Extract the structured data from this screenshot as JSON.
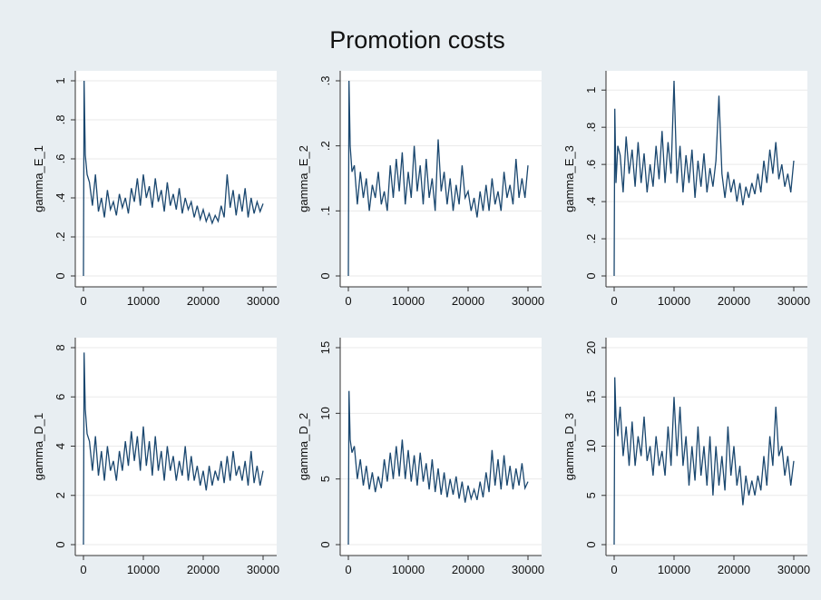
{
  "title": "Promotion costs",
  "chart_data": [
    {
      "type": "line",
      "y_label": "gamma_E_1",
      "xlim": [
        0,
        30000
      ],
      "xticks": [
        0,
        10000,
        20000,
        30000
      ],
      "ylim": [
        0,
        1
      ],
      "yticks": [
        0,
        {
          "value": 0.2,
          "label": ".2"
        },
        {
          "value": 0.4,
          "label": ".4"
        },
        {
          "value": 0.6,
          "label": ".6"
        },
        {
          "value": 0.8,
          "label": ".8"
        },
        1
      ],
      "grid": true,
      "x": [
        0,
        100,
        300,
        600,
        1000,
        1500,
        2000,
        2500,
        3000,
        3500,
        4000,
        4500,
        5000,
        5500,
        6000,
        6500,
        7000,
        7500,
        8000,
        8500,
        9000,
        9500,
        10000,
        10500,
        11000,
        11500,
        12000,
        12500,
        13000,
        13500,
        14000,
        14500,
        15000,
        15500,
        16000,
        16500,
        17000,
        17500,
        18000,
        18500,
        19000,
        19500,
        20000,
        20500,
        21000,
        21500,
        22000,
        22500,
        23000,
        23500,
        24000,
        24500,
        25000,
        25500,
        26000,
        26500,
        27000,
        27500,
        28000,
        28500,
        29000,
        29500,
        30000
      ],
      "series": [
        {
          "color": "#1a476f",
          "values": [
            0,
            1.0,
            0.62,
            0.52,
            0.48,
            0.36,
            0.52,
            0.33,
            0.4,
            0.3,
            0.44,
            0.34,
            0.38,
            0.31,
            0.42,
            0.35,
            0.4,
            0.32,
            0.45,
            0.38,
            0.5,
            0.36,
            0.52,
            0.4,
            0.46,
            0.35,
            0.5,
            0.38,
            0.44,
            0.33,
            0.48,
            0.36,
            0.42,
            0.34,
            0.45,
            0.32,
            0.4,
            0.34,
            0.38,
            0.3,
            0.36,
            0.29,
            0.34,
            0.28,
            0.32,
            0.27,
            0.31,
            0.28,
            0.36,
            0.3,
            0.52,
            0.35,
            0.44,
            0.31,
            0.42,
            0.33,
            0.45,
            0.3,
            0.4,
            0.32,
            0.38,
            0.33,
            0.37
          ]
        }
      ]
    },
    {
      "type": "line",
      "y_label": "gamma_E_2",
      "xlim": [
        0,
        30000
      ],
      "xticks": [
        0,
        10000,
        20000,
        30000
      ],
      "ylim": [
        0,
        0.3
      ],
      "yticks": [
        0,
        {
          "value": 0.1,
          "label": ".1"
        },
        {
          "value": 0.2,
          "label": ".2"
        },
        {
          "value": 0.3,
          "label": ".3"
        }
      ],
      "grid": true,
      "x": [
        0,
        100,
        300,
        600,
        1000,
        1500,
        2000,
        2500,
        3000,
        3500,
        4000,
        4500,
        5000,
        5500,
        6000,
        6500,
        7000,
        7500,
        8000,
        8500,
        9000,
        9500,
        10000,
        10500,
        11000,
        11500,
        12000,
        12500,
        13000,
        13500,
        14000,
        14500,
        15000,
        15500,
        16000,
        16500,
        17000,
        17500,
        18000,
        18500,
        19000,
        19500,
        20000,
        20500,
        21000,
        21500,
        22000,
        22500,
        23000,
        23500,
        24000,
        24500,
        25000,
        25500,
        26000,
        26500,
        27000,
        27500,
        28000,
        28500,
        29000,
        29500,
        30000
      ],
      "series": [
        {
          "color": "#1a476f",
          "values": [
            0,
            0.3,
            0.2,
            0.16,
            0.17,
            0.11,
            0.16,
            0.12,
            0.15,
            0.1,
            0.14,
            0.12,
            0.16,
            0.11,
            0.13,
            0.1,
            0.17,
            0.12,
            0.18,
            0.13,
            0.19,
            0.11,
            0.16,
            0.12,
            0.2,
            0.13,
            0.17,
            0.11,
            0.18,
            0.12,
            0.15,
            0.1,
            0.21,
            0.13,
            0.16,
            0.11,
            0.15,
            0.1,
            0.14,
            0.11,
            0.17,
            0.12,
            0.13,
            0.1,
            0.12,
            0.09,
            0.13,
            0.1,
            0.14,
            0.1,
            0.15,
            0.11,
            0.13,
            0.1,
            0.16,
            0.12,
            0.14,
            0.11,
            0.18,
            0.12,
            0.15,
            0.12,
            0.17
          ]
        }
      ]
    },
    {
      "type": "line",
      "y_label": "gamma_E_3",
      "xlim": [
        0,
        30000
      ],
      "xticks": [
        0,
        10000,
        20000,
        30000
      ],
      "ylim": [
        0,
        1.05
      ],
      "yticks": [
        0,
        {
          "value": 0.2,
          "label": ".2"
        },
        {
          "value": 0.4,
          "label": ".4"
        },
        {
          "value": 0.6,
          "label": ".6"
        },
        {
          "value": 0.8,
          "label": ".8"
        },
        1
      ],
      "grid": true,
      "x": [
        0,
        100,
        300,
        600,
        1000,
        1500,
        2000,
        2500,
        3000,
        3500,
        4000,
        4500,
        5000,
        5500,
        6000,
        6500,
        7000,
        7500,
        8000,
        8500,
        9000,
        9500,
        10000,
        10500,
        11000,
        11500,
        12000,
        12500,
        13000,
        13500,
        14000,
        14500,
        15000,
        15500,
        16000,
        16500,
        17000,
        17500,
        18000,
        18500,
        19000,
        19500,
        20000,
        20500,
        21000,
        21500,
        22000,
        22500,
        23000,
        23500,
        24000,
        24500,
        25000,
        25500,
        26000,
        26500,
        27000,
        27500,
        28000,
        28500,
        29000,
        29500,
        30000
      ],
      "series": [
        {
          "color": "#1a476f",
          "values": [
            0,
            0.9,
            0.5,
            0.7,
            0.65,
            0.45,
            0.75,
            0.55,
            0.68,
            0.48,
            0.72,
            0.5,
            0.66,
            0.45,
            0.6,
            0.48,
            0.7,
            0.52,
            0.78,
            0.5,
            0.72,
            0.55,
            1.05,
            0.5,
            0.7,
            0.45,
            0.65,
            0.5,
            0.68,
            0.42,
            0.62,
            0.48,
            0.66,
            0.45,
            0.58,
            0.48,
            0.62,
            0.97,
            0.55,
            0.42,
            0.56,
            0.45,
            0.52,
            0.4,
            0.5,
            0.38,
            0.48,
            0.42,
            0.5,
            0.44,
            0.55,
            0.45,
            0.62,
            0.5,
            0.68,
            0.55,
            0.72,
            0.52,
            0.6,
            0.48,
            0.55,
            0.45,
            0.62
          ]
        }
      ]
    },
    {
      "type": "line",
      "y_label": "gamma_D_1",
      "xlim": [
        0,
        30000
      ],
      "xticks": [
        0,
        10000,
        20000,
        30000
      ],
      "ylim": [
        0,
        8
      ],
      "yticks": [
        0,
        2,
        4,
        6,
        8
      ],
      "grid": true,
      "x": [
        0,
        100,
        300,
        600,
        1000,
        1500,
        2000,
        2500,
        3000,
        3500,
        4000,
        4500,
        5000,
        5500,
        6000,
        6500,
        7000,
        7500,
        8000,
        8500,
        9000,
        9500,
        10000,
        10500,
        11000,
        11500,
        12000,
        12500,
        13000,
        13500,
        14000,
        14500,
        15000,
        15500,
        16000,
        16500,
        17000,
        17500,
        18000,
        18500,
        19000,
        19500,
        20000,
        20500,
        21000,
        21500,
        22000,
        22500,
        23000,
        23500,
        24000,
        24500,
        25000,
        25500,
        26000,
        26500,
        27000,
        27500,
        28000,
        28500,
        29000,
        29500,
        30000
      ],
      "series": [
        {
          "color": "#1a476f",
          "values": [
            0,
            7.8,
            5.5,
            4.5,
            4.2,
            3.0,
            4.4,
            2.8,
            3.8,
            2.6,
            4.0,
            3.0,
            3.4,
            2.6,
            3.8,
            3.0,
            4.2,
            3.2,
            4.6,
            3.4,
            4.4,
            3.0,
            4.8,
            3.2,
            4.2,
            2.8,
            4.4,
            3.0,
            3.8,
            2.6,
            4.0,
            3.0,
            3.6,
            2.6,
            3.4,
            2.8,
            4.0,
            2.6,
            3.6,
            2.6,
            3.2,
            2.4,
            3.0,
            2.2,
            3.2,
            2.4,
            3.0,
            2.6,
            3.4,
            2.5,
            3.6,
            2.6,
            3.8,
            2.8,
            3.2,
            2.6,
            3.4,
            2.4,
            3.8,
            2.5,
            3.2,
            2.4,
            3.0
          ]
        }
      ]
    },
    {
      "type": "line",
      "y_label": "gamma_D_2",
      "xlim": [
        0,
        30000
      ],
      "xticks": [
        0,
        10000,
        20000,
        30000
      ],
      "ylim": [
        0,
        15
      ],
      "yticks": [
        0,
        5,
        10,
        15
      ],
      "grid": true,
      "x": [
        0,
        100,
        300,
        600,
        1000,
        1500,
        2000,
        2500,
        3000,
        3500,
        4000,
        4500,
        5000,
        5500,
        6000,
        6500,
        7000,
        7500,
        8000,
        8500,
        9000,
        9500,
        10000,
        10500,
        11000,
        11500,
        12000,
        12500,
        13000,
        13500,
        14000,
        14500,
        15000,
        15500,
        16000,
        16500,
        17000,
        17500,
        18000,
        18500,
        19000,
        19500,
        20000,
        20500,
        21000,
        21500,
        22000,
        22500,
        23000,
        23500,
        24000,
        24500,
        25000,
        25500,
        26000,
        26500,
        27000,
        27500,
        28000,
        28500,
        29000,
        29500,
        30000
      ],
      "series": [
        {
          "color": "#1a476f",
          "values": [
            0,
            11.7,
            8,
            7,
            7.5,
            5.0,
            6.5,
            4.5,
            6.0,
            4.2,
            5.5,
            4.0,
            5.2,
            4.3,
            6.5,
            4.8,
            7.0,
            5.0,
            7.5,
            5.2,
            8.0,
            5.0,
            7.2,
            4.8,
            6.8,
            4.5,
            7.0,
            4.8,
            6.2,
            4.2,
            6.5,
            4.0,
            5.8,
            3.8,
            5.5,
            3.6,
            5.0,
            3.8,
            5.2,
            3.5,
            4.8,
            3.2,
            4.5,
            3.5,
            4.2,
            3.4,
            4.8,
            3.6,
            5.5,
            4.0,
            7.2,
            4.5,
            6.5,
            4.2,
            6.8,
            4.5,
            6.0,
            4.2,
            5.8,
            4.5,
            6.2,
            4.3,
            4.8
          ]
        }
      ]
    },
    {
      "type": "line",
      "y_label": "gamma_D_3",
      "xlim": [
        0,
        30000
      ],
      "xticks": [
        0,
        10000,
        20000,
        30000
      ],
      "ylim": [
        0,
        20
      ],
      "yticks": [
        0,
        5,
        10,
        15,
        20
      ],
      "grid": true,
      "x": [
        0,
        100,
        300,
        600,
        1000,
        1500,
        2000,
        2500,
        3000,
        3500,
        4000,
        4500,
        5000,
        5500,
        6000,
        6500,
        7000,
        7500,
        8000,
        8500,
        9000,
        9500,
        10000,
        10500,
        11000,
        11500,
        12000,
        12500,
        13000,
        13500,
        14000,
        14500,
        15000,
        15500,
        16000,
        16500,
        17000,
        17500,
        18000,
        18500,
        19000,
        19500,
        20000,
        20500,
        21000,
        21500,
        22000,
        22500,
        23000,
        23500,
        24000,
        24500,
        25000,
        25500,
        26000,
        26500,
        27000,
        27500,
        28000,
        28500,
        29000,
        29500,
        30000
      ],
      "series": [
        {
          "color": "#1a476f",
          "values": [
            0,
            17,
            13,
            11,
            14,
            9,
            12,
            8,
            12.5,
            8,
            11,
            9,
            13,
            8.5,
            10,
            7,
            11,
            8,
            9.5,
            7,
            12,
            8,
            15,
            9,
            14,
            8,
            11,
            6,
            10,
            6.5,
            12,
            7,
            10,
            6,
            11,
            5,
            10,
            6,
            9,
            5.5,
            12,
            7,
            10,
            6,
            8,
            4,
            7,
            5,
            6.5,
            5,
            7,
            5.5,
            9,
            6,
            11,
            8,
            14,
            9,
            10,
            7,
            9,
            6,
            8.5
          ]
        }
      ]
    }
  ]
}
